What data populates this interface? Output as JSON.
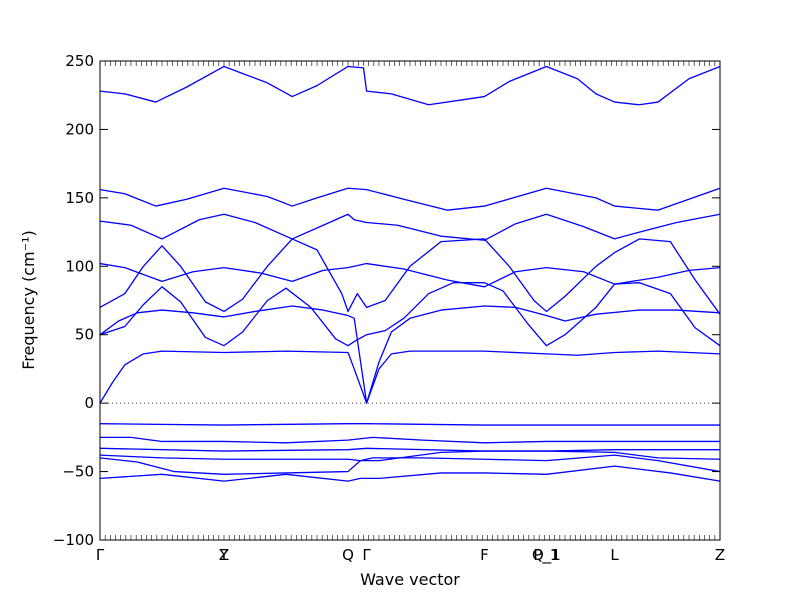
{
  "chart_data": {
    "type": "line",
    "xlabel": "Wave vector",
    "ylabel": "Frequency (cm⁻¹)",
    "ylim": [
      -100,
      250
    ],
    "yticks": [
      -100,
      -50,
      0,
      50,
      100,
      150,
      200,
      250
    ],
    "grid": false,
    "legend": "none",
    "x_high_symmetry": [
      {
        "label": "Γ",
        "x": 0.0
      },
      {
        "label": "Y",
        "x": 0.2
      },
      {
        "label": "Z",
        "x": 0.2
      },
      {
        "label": "Q",
        "x": 0.4
      },
      {
        "label": "Γ",
        "x": 0.43
      },
      {
        "label": "F",
        "x": 0.62
      },
      {
        "label": "P_1",
        "x": 0.72
      },
      {
        "label": "Q_1",
        "x": 0.72
      },
      {
        "label": "L",
        "x": 0.83
      },
      {
        "label": "Z",
        "x": 1.0
      }
    ],
    "series": [
      {
        "values": [
          [
            0.0,
            228
          ],
          [
            0.04,
            226
          ],
          [
            0.09,
            220
          ],
          [
            0.14,
            231
          ],
          [
            0.2,
            246
          ],
          [
            0.27,
            234
          ],
          [
            0.31,
            224
          ],
          [
            0.35,
            232
          ],
          [
            0.4,
            246
          ],
          [
            0.425,
            245
          ],
          [
            0.43,
            228
          ],
          [
            0.47,
            226
          ],
          [
            0.53,
            218
          ],
          [
            0.59,
            222
          ],
          [
            0.62,
            224
          ],
          [
            0.66,
            235
          ],
          [
            0.72,
            246
          ],
          [
            0.77,
            237
          ],
          [
            0.8,
            226
          ],
          [
            0.83,
            220
          ],
          [
            0.87,
            218
          ],
          [
            0.9,
            220
          ],
          [
            0.95,
            237
          ],
          [
            1.0,
            246
          ]
        ]
      },
      {
        "values": [
          [
            0.0,
            156
          ],
          [
            0.04,
            153
          ],
          [
            0.09,
            144
          ],
          [
            0.14,
            149
          ],
          [
            0.2,
            157
          ],
          [
            0.27,
            151
          ],
          [
            0.31,
            144
          ],
          [
            0.35,
            150
          ],
          [
            0.4,
            157
          ],
          [
            0.43,
            156
          ],
          [
            0.49,
            149
          ],
          [
            0.56,
            141
          ],
          [
            0.62,
            144
          ],
          [
            0.72,
            157
          ],
          [
            0.8,
            150
          ],
          [
            0.83,
            144
          ],
          [
            0.9,
            141
          ],
          [
            1.0,
            157
          ]
        ]
      },
      {
        "values": [
          [
            0.0,
            133
          ],
          [
            0.05,
            130
          ],
          [
            0.1,
            120
          ],
          [
            0.16,
            134
          ],
          [
            0.2,
            138
          ],
          [
            0.25,
            132
          ],
          [
            0.31,
            120
          ],
          [
            0.36,
            130
          ],
          [
            0.4,
            138
          ],
          [
            0.41,
            134
          ],
          [
            0.43,
            132
          ],
          [
            0.48,
            130
          ],
          [
            0.55,
            122
          ],
          [
            0.62,
            119
          ],
          [
            0.67,
            131
          ],
          [
            0.72,
            138
          ],
          [
            0.78,
            129
          ],
          [
            0.83,
            120
          ],
          [
            0.87,
            125
          ],
          [
            0.93,
            132
          ],
          [
            1.0,
            138
          ]
        ]
      },
      {
        "values": [
          [
            0.0,
            102
          ],
          [
            0.04,
            99
          ],
          [
            0.1,
            89
          ],
          [
            0.15,
            96
          ],
          [
            0.2,
            99
          ],
          [
            0.26,
            95
          ],
          [
            0.31,
            89
          ],
          [
            0.36,
            97
          ],
          [
            0.4,
            99
          ],
          [
            0.43,
            102
          ],
          [
            0.49,
            98
          ],
          [
            0.56,
            90
          ],
          [
            0.62,
            85
          ],
          [
            0.67,
            96
          ],
          [
            0.72,
            99
          ],
          [
            0.78,
            96
          ],
          [
            0.83,
            87
          ],
          [
            0.9,
            92
          ],
          [
            0.95,
            97
          ],
          [
            1.0,
            99
          ]
        ]
      },
      {
        "values": [
          [
            0.0,
            70
          ],
          [
            0.04,
            80
          ],
          [
            0.07,
            100
          ],
          [
            0.1,
            115
          ],
          [
            0.13,
            100
          ],
          [
            0.17,
            74
          ],
          [
            0.2,
            67
          ],
          [
            0.23,
            76
          ],
          [
            0.27,
            100
          ],
          [
            0.31,
            120
          ],
          [
            0.35,
            112
          ],
          [
            0.39,
            80
          ],
          [
            0.4,
            67
          ],
          [
            0.415,
            80
          ],
          [
            0.43,
            70
          ],
          [
            0.46,
            75
          ],
          [
            0.5,
            100
          ],
          [
            0.55,
            118
          ],
          [
            0.62,
            120
          ],
          [
            0.66,
            100
          ],
          [
            0.7,
            75
          ],
          [
            0.72,
            67
          ],
          [
            0.75,
            78
          ],
          [
            0.8,
            100
          ],
          [
            0.83,
            110
          ],
          [
            0.87,
            120
          ],
          [
            0.92,
            118
          ],
          [
            0.96,
            90
          ],
          [
            1.0,
            65
          ]
        ]
      },
      {
        "values": [
          [
            0.0,
            50
          ],
          [
            0.04,
            56
          ],
          [
            0.07,
            72
          ],
          [
            0.1,
            85
          ],
          [
            0.13,
            74
          ],
          [
            0.17,
            48
          ],
          [
            0.2,
            42
          ],
          [
            0.23,
            52
          ],
          [
            0.27,
            75
          ],
          [
            0.3,
            84
          ],
          [
            0.34,
            70
          ],
          [
            0.38,
            47
          ],
          [
            0.4,
            42
          ],
          [
            0.41,
            45
          ],
          [
            0.43,
            50
          ],
          [
            0.46,
            53
          ],
          [
            0.49,
            62
          ],
          [
            0.53,
            80
          ],
          [
            0.57,
            88
          ],
          [
            0.62,
            88
          ],
          [
            0.65,
            82
          ],
          [
            0.69,
            58
          ],
          [
            0.72,
            42
          ],
          [
            0.75,
            50
          ],
          [
            0.8,
            70
          ],
          [
            0.83,
            87
          ],
          [
            0.87,
            88
          ],
          [
            0.92,
            80
          ],
          [
            0.96,
            55
          ],
          [
            1.0,
            42
          ]
        ]
      },
      {
        "values": [
          [
            0.0,
            50
          ],
          [
            0.03,
            60
          ],
          [
            0.06,
            66
          ],
          [
            0.1,
            68
          ],
          [
            0.15,
            66
          ],
          [
            0.2,
            63
          ],
          [
            0.25,
            67
          ],
          [
            0.31,
            71
          ],
          [
            0.36,
            68
          ],
          [
            0.4,
            64
          ],
          [
            0.41,
            62
          ],
          [
            0.43,
            0
          ],
          [
            0.45,
            30
          ],
          [
            0.47,
            52
          ],
          [
            0.5,
            62
          ],
          [
            0.55,
            68
          ],
          [
            0.62,
            71
          ],
          [
            0.67,
            70
          ],
          [
            0.72,
            64
          ],
          [
            0.75,
            60
          ],
          [
            0.8,
            65
          ],
          [
            0.87,
            68
          ],
          [
            0.93,
            68
          ],
          [
            1.0,
            66
          ]
        ]
      },
      {
        "values": [
          [
            0.0,
            0
          ],
          [
            0.02,
            15
          ],
          [
            0.04,
            28
          ],
          [
            0.07,
            36
          ],
          [
            0.1,
            38
          ],
          [
            0.2,
            37
          ],
          [
            0.3,
            38
          ],
          [
            0.4,
            37
          ],
          [
            0.41,
            25
          ],
          [
            0.43,
            0
          ],
          [
            0.45,
            25
          ],
          [
            0.47,
            36
          ],
          [
            0.5,
            38
          ],
          [
            0.62,
            38
          ],
          [
            0.72,
            36
          ],
          [
            0.77,
            35
          ],
          [
            0.83,
            37
          ],
          [
            0.9,
            38
          ],
          [
            1.0,
            36
          ]
        ]
      },
      {
        "values": [
          [
            0.0,
            -15
          ],
          [
            0.2,
            -16
          ],
          [
            0.4,
            -15
          ],
          [
            0.43,
            -15
          ],
          [
            0.62,
            -16
          ],
          [
            0.72,
            -16
          ],
          [
            0.83,
            -16
          ],
          [
            1.0,
            -16
          ]
        ]
      },
      {
        "values": [
          [
            0.0,
            -25
          ],
          [
            0.05,
            -25
          ],
          [
            0.1,
            -28
          ],
          [
            0.2,
            -28
          ],
          [
            0.3,
            -29
          ],
          [
            0.4,
            -27
          ],
          [
            0.42,
            -26
          ],
          [
            0.44,
            -25
          ],
          [
            0.52,
            -27
          ],
          [
            0.62,
            -29
          ],
          [
            0.72,
            -28
          ],
          [
            0.83,
            -28
          ],
          [
            1.0,
            -28
          ]
        ]
      },
      {
        "values": [
          [
            0.0,
            -33
          ],
          [
            0.2,
            -35
          ],
          [
            0.4,
            -34
          ],
          [
            0.43,
            -33
          ],
          [
            0.62,
            -35
          ],
          [
            0.72,
            -35
          ],
          [
            0.83,
            -34
          ],
          [
            1.0,
            -34
          ]
        ]
      },
      {
        "values": [
          [
            0.0,
            -38
          ],
          [
            0.1,
            -40
          ],
          [
            0.2,
            -41
          ],
          [
            0.3,
            -41
          ],
          [
            0.4,
            -41
          ],
          [
            0.42,
            -42
          ],
          [
            0.45,
            -42
          ],
          [
            0.55,
            -36
          ],
          [
            0.62,
            -35
          ],
          [
            0.72,
            -35
          ],
          [
            0.83,
            -36
          ],
          [
            0.9,
            -40
          ],
          [
            1.0,
            -41
          ]
        ]
      },
      {
        "values": [
          [
            0.0,
            -40
          ],
          [
            0.06,
            -43
          ],
          [
            0.12,
            -50
          ],
          [
            0.2,
            -52
          ],
          [
            0.3,
            -51
          ],
          [
            0.4,
            -50
          ],
          [
            0.42,
            -42
          ],
          [
            0.44,
            -40
          ],
          [
            0.52,
            -40
          ],
          [
            0.62,
            -41
          ],
          [
            0.72,
            -42
          ],
          [
            0.83,
            -38
          ],
          [
            0.9,
            -42
          ],
          [
            1.0,
            -50
          ]
        ]
      },
      {
        "values": [
          [
            0.0,
            -55
          ],
          [
            0.1,
            -52
          ],
          [
            0.2,
            -57
          ],
          [
            0.3,
            -52
          ],
          [
            0.4,
            -57
          ],
          [
            0.42,
            -55
          ],
          [
            0.45,
            -55
          ],
          [
            0.55,
            -51
          ],
          [
            0.62,
            -51
          ],
          [
            0.72,
            -52
          ],
          [
            0.83,
            -46
          ],
          [
            0.92,
            -51
          ],
          [
            1.0,
            -57
          ]
        ]
      }
    ]
  }
}
